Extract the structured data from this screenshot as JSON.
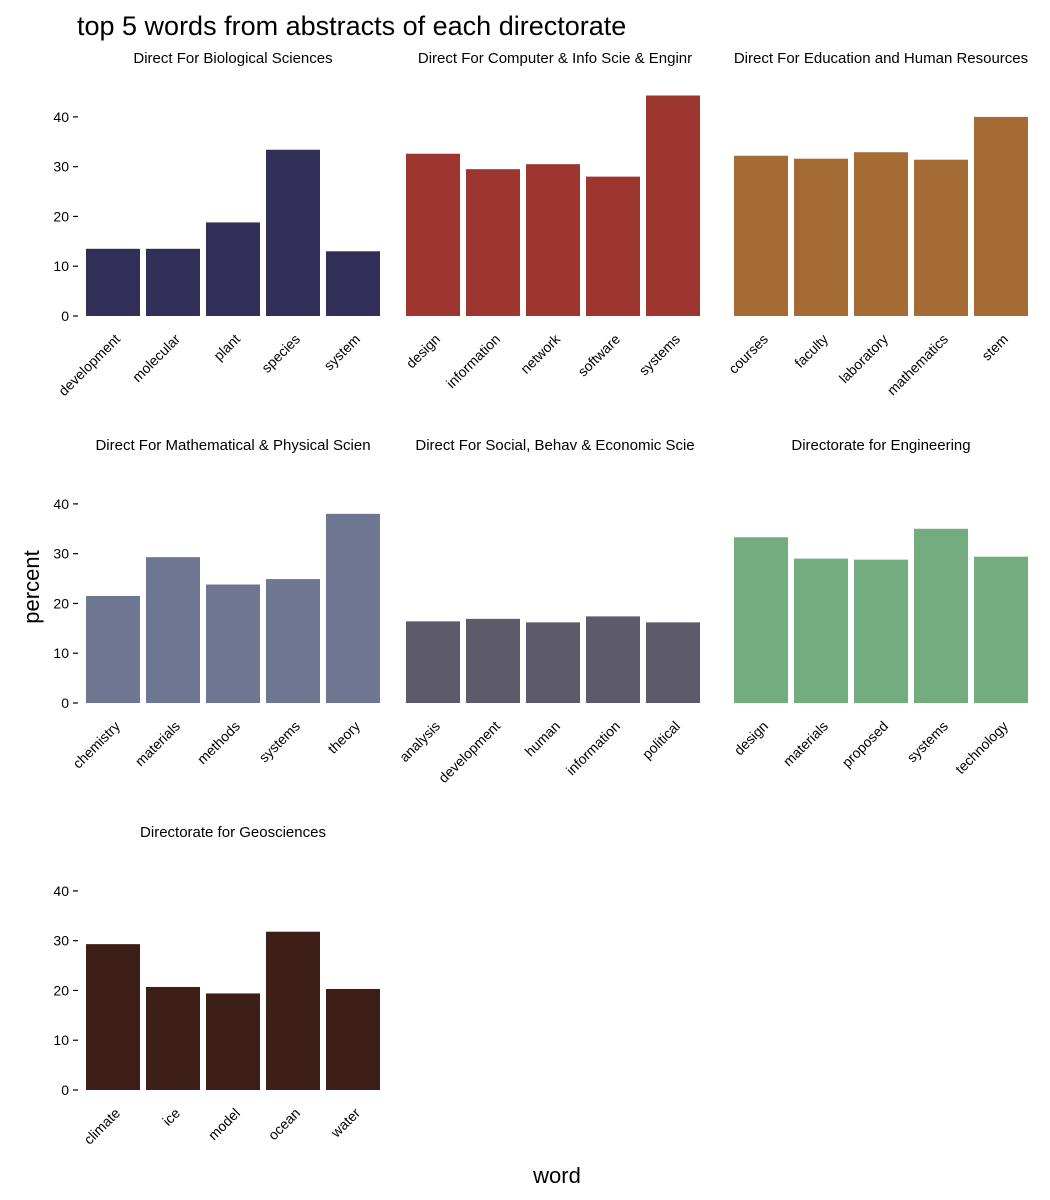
{
  "chart_data": {
    "type": "bar",
    "title": "top 5 words from abstracts of each directorate",
    "xlabel": "word",
    "ylabel": "percent",
    "ylim": [
      0,
      45
    ],
    "yticks": [
      0,
      10,
      20,
      30,
      40
    ],
    "grid": false,
    "panels": [
      {
        "title": "Direct For Biological Sciences",
        "color": "#312e57",
        "categories": [
          "development",
          "molecular",
          "plant",
          "species",
          "system"
        ],
        "values": [
          13.5,
          13.5,
          18.8,
          33.4,
          13.0
        ]
      },
      {
        "title": "Direct For Computer & Info Scie & Enginr",
        "color": "#9e3630",
        "categories": [
          "design",
          "information",
          "network",
          "software",
          "systems"
        ],
        "values": [
          32.6,
          29.5,
          30.5,
          28.0,
          44.3
        ]
      },
      {
        "title": "Direct For Education and Human Resources",
        "color": "#a56b35",
        "categories": [
          "courses",
          "faculty",
          "laboratory",
          "mathematics",
          "stem"
        ],
        "values": [
          32.2,
          31.6,
          32.9,
          31.4,
          40.0
        ]
      },
      {
        "title": "Direct For Mathematical & Physical Scien",
        "color": "#6f7692",
        "categories": [
          "chemistry",
          "materials",
          "methods",
          "systems",
          "theory"
        ],
        "values": [
          21.5,
          29.3,
          23.8,
          24.9,
          38.0
        ]
      },
      {
        "title": "Direct For Social, Behav & Economic Scie",
        "color": "#5d5a6b",
        "categories": [
          "analysis",
          "development",
          "human",
          "information",
          "political"
        ],
        "values": [
          16.4,
          16.9,
          16.2,
          17.4,
          16.2
        ]
      },
      {
        "title": "Directorate for Engineering",
        "color": "#72ac7f",
        "categories": [
          "design",
          "materials",
          "proposed",
          "systems",
          "technology"
        ],
        "values": [
          33.3,
          29.0,
          28.8,
          35.0,
          29.4
        ]
      },
      {
        "title": "Directorate for Geosciences",
        "color": "#3d1f18",
        "categories": [
          "climate",
          "ice",
          "model",
          "ocean",
          "water"
        ],
        "values": [
          29.3,
          20.7,
          19.4,
          31.8,
          20.3
        ]
      }
    ]
  }
}
